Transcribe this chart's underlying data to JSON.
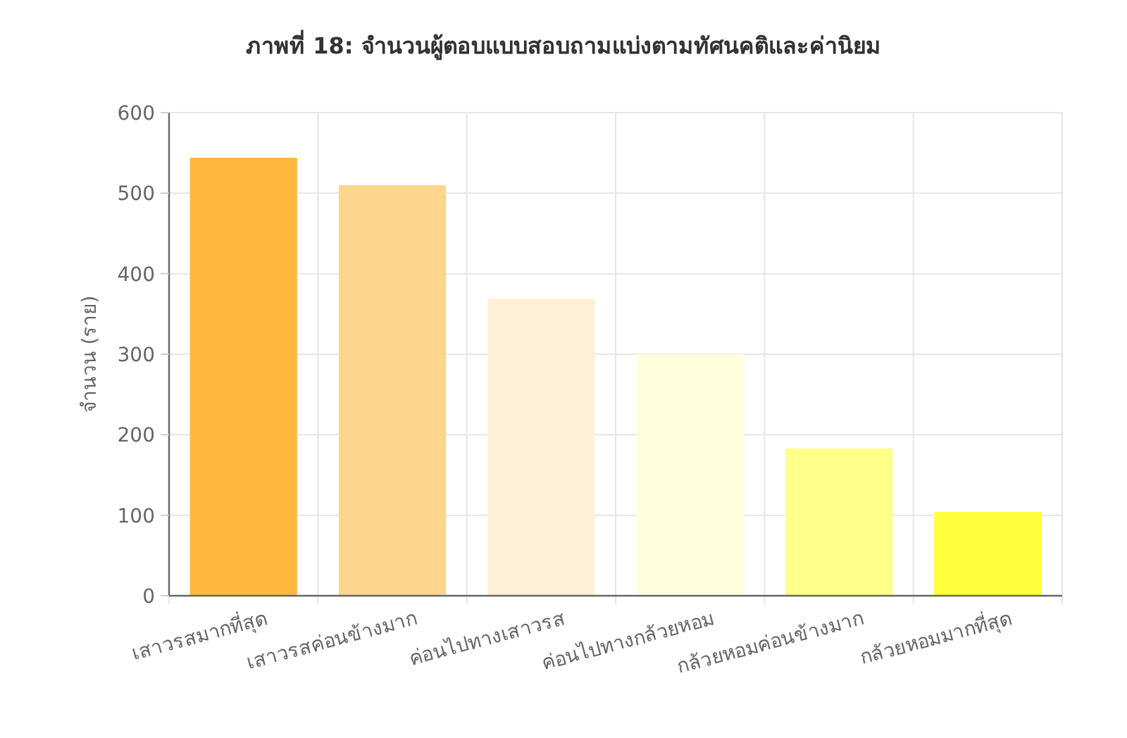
{
  "chart_data": {
    "type": "bar",
    "title": "ภาพที่ 18: จำนวนผู้ตอบแบบสอบถามแบ่งตามทัศนคติและค่านิยม",
    "ylabel": "จำนวน (ราย)",
    "categories": [
      "เสาวรสมากที่สุด",
      "เสาวรสค่อนข้างมาก",
      "ค่อนไปทางเสาวรส",
      "ค่อนไปทางกล้วยหอม",
      "กล้วยหอมค่อนข้างมาก",
      "กล้วยหอมมากที่สุด"
    ],
    "values": [
      544,
      510,
      369,
      300,
      183,
      104
    ],
    "colors": [
      "#ffb83c",
      "#fdd68c",
      "#fff0d7",
      "#ffffdd",
      "#ffff8a",
      "#ffff3c"
    ],
    "ylim": [
      0,
      600
    ],
    "yticks": [
      0,
      100,
      200,
      300,
      400,
      500,
      600
    ],
    "grid": true
  }
}
